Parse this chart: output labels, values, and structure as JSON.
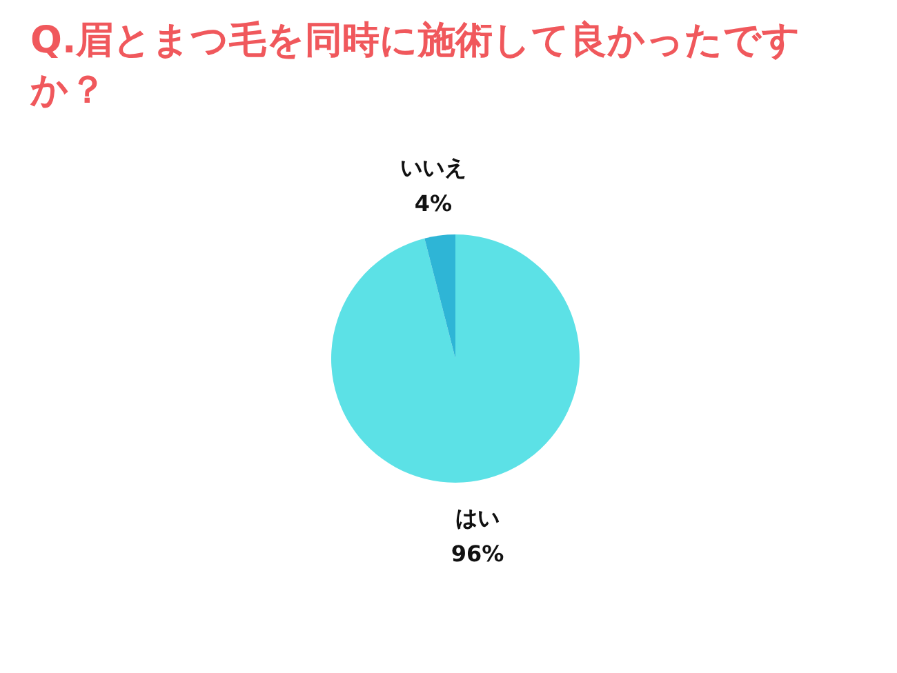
{
  "chart_data": {
    "type": "pie",
    "title": "Q.眉とまつ毛を同時に施術して良かったですか？",
    "categories": [
      "はい",
      "いいえ"
    ],
    "values": [
      96,
      4
    ],
    "colors": [
      "#5ce1e6",
      "#2eb5d6"
    ],
    "value_labels": [
      "96%",
      "4%"
    ]
  }
}
